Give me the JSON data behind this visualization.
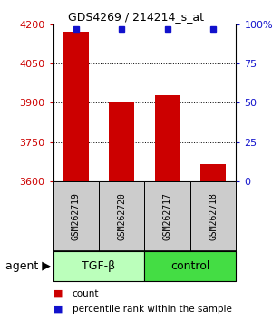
{
  "title": "GDS4269 / 214214_s_at",
  "samples": [
    "GSM262719",
    "GSM262720",
    "GSM262717",
    "GSM262718"
  ],
  "bar_values": [
    4170,
    3905,
    3930,
    3665
  ],
  "percentile_values": [
    97,
    97,
    97,
    97
  ],
  "ylim_left": [
    3600,
    4200
  ],
  "ylim_right": [
    0,
    100
  ],
  "yticks_left": [
    3600,
    3750,
    3900,
    4050,
    4200
  ],
  "yticks_right": [
    0,
    25,
    50,
    75,
    100
  ],
  "bar_color": "#cc0000",
  "dot_color": "#1111cc",
  "bar_width": 0.55,
  "groups": [
    {
      "label": "TGF-β",
      "color": "#bbffbb",
      "start": 0,
      "end": 1
    },
    {
      "label": "control",
      "color": "#44dd44",
      "start": 2,
      "end": 3
    }
  ],
  "agent_label": "agent",
  "legend_count_label": "count",
  "legend_pct_label": "percentile rank within the sample",
  "grid_color": "#000000",
  "axis_left_color": "#cc0000",
  "axis_right_color": "#1111cc",
  "bg_sample_box": "#cccccc",
  "title_fontsize": 9,
  "tick_fontsize": 8,
  "sample_fontsize": 7,
  "group_fontsize": 9,
  "legend_fontsize": 7.5,
  "agent_fontsize": 9
}
